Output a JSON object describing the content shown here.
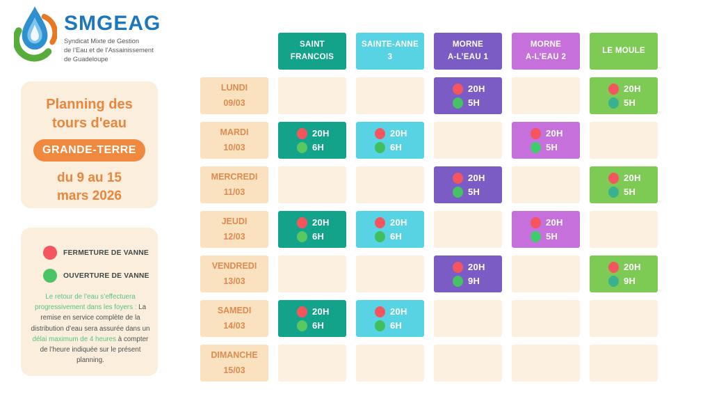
{
  "colors": {
    "logo_blue": "#1C77BC",
    "tagline_gray": "#55565A",
    "panel_cream": "#FBEEDC",
    "accent_orange": "#E9863D",
    "badge_orange": "#F0883E",
    "day_cell_cream": "#FAE2C1",
    "empty_cell_cream": "#FCF1E1",
    "day_text_orange": "#DE8A50",
    "legend_text_dark": "#3E4847",
    "note_green": "#55C57C",
    "note_dark": "#4A5251",
    "red_dot": "#F4555E",
    "green_dot": "#4AC464"
  },
  "logo": {
    "name": "SMGEAG",
    "tagline_lines": [
      "Syndicat Mixte de Gestion",
      "de l’Eau et de l’Assainissement",
      "de Guadeloupe"
    ]
  },
  "title_panel": {
    "title_line1": "Planning des",
    "title_line2": "tours d'eau",
    "region_badge": "GRANDE-TERRE",
    "date_line1": "du 9 au 15",
    "date_line2": "mars 2026"
  },
  "legend_panel": {
    "items": [
      {
        "kind": "fermeture",
        "label": "FERMETURE DE VANNE"
      },
      {
        "kind": "ouverture",
        "label": "OUVERTURE DE VANNE"
      }
    ],
    "note_segments": [
      {
        "text": "Le retour de l’eau s’effectuera progressivement dans les foyers :",
        "highlight": true
      },
      {
        "text": " La remise en service complète de la distribution d’eau sera assurée dans un ",
        "highlight": false
      },
      {
        "text": "délai maximum de 4 heures",
        "highlight": true
      },
      {
        "text": " à compter de l’heure indiquée sur le présent planning.",
        "highlight": false
      }
    ]
  },
  "schedule": {
    "columns": [
      {
        "id": "saint-francois",
        "label_lines": [
          "SAINT",
          "FRANCOIS"
        ],
        "color": "#12A38A",
        "open_dot_color": "#5BC763"
      },
      {
        "id": "sainte-anne-3",
        "label_lines": [
          "SAINTE-ANNE",
          "3"
        ],
        "color": "#58D3E4",
        "open_dot_color": "#41BE5F"
      },
      {
        "id": "morne-a-leau-1",
        "label_lines": [
          "MORNE",
          "A-L’EAU 1"
        ],
        "color": "#7A5CC4",
        "open_dot_color": "#45C263"
      },
      {
        "id": "morne-a-leau-2",
        "label_lines": [
          "MORNE",
          "A-L’EAU 2"
        ],
        "color": "#C671DB",
        "open_dot_color": "#3FCB6C"
      },
      {
        "id": "le-moule",
        "label_lines": [
          "LE MOULE"
        ],
        "color": "#7DCA54",
        "open_dot_color": "#3AB18D"
      }
    ],
    "rows": [
      {
        "day": "LUNDI",
        "date": "09/03",
        "cells": [
          null,
          null,
          {
            "close": "20H",
            "open": "5H"
          },
          null,
          {
            "close": "20H",
            "open": "5H"
          }
        ]
      },
      {
        "day": "MARDI",
        "date": "10/03",
        "cells": [
          {
            "close": "20H",
            "open": "6H"
          },
          {
            "close": "20H",
            "open": "6H"
          },
          null,
          {
            "close": "20H",
            "open": "5H"
          },
          null
        ]
      },
      {
        "day": "MERCREDI",
        "date": "11/03",
        "cells": [
          null,
          null,
          {
            "close": "20H",
            "open": "5H"
          },
          null,
          {
            "close": "20H",
            "open": "5H"
          }
        ]
      },
      {
        "day": "JEUDI",
        "date": "12/03",
        "cells": [
          {
            "close": "20H",
            "open": "6H"
          },
          {
            "close": "20H",
            "open": "6H"
          },
          null,
          {
            "close": "20H",
            "open": "5H"
          },
          null
        ]
      },
      {
        "day": "VENDREDI",
        "date": "13/03",
        "cells": [
          null,
          null,
          {
            "close": "20H",
            "open": "9H"
          },
          null,
          {
            "close": "20H",
            "open": "9H"
          }
        ]
      },
      {
        "day": "SAMEDI",
        "date": "14/03",
        "cells": [
          {
            "close": "20H",
            "open": "6H"
          },
          {
            "close": "20H",
            "open": "6H"
          },
          null,
          null,
          null
        ]
      },
      {
        "day": "DIMANCHE",
        "date": "15/03",
        "cells": [
          null,
          null,
          null,
          null,
          null
        ]
      }
    ]
  }
}
